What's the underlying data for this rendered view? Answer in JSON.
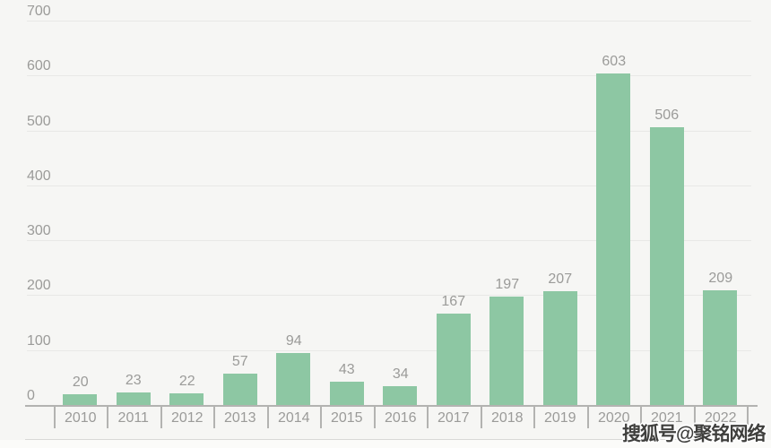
{
  "chart_data": {
    "type": "bar",
    "title": "",
    "xlabel": "",
    "ylabel": "",
    "categories": [
      "2010",
      "2011",
      "2012",
      "2013",
      "2014",
      "2015",
      "2016",
      "2017",
      "2018",
      "2019",
      "2020",
      "2021",
      "2022"
    ],
    "values": [
      20,
      23,
      22,
      57,
      94,
      43,
      34,
      167,
      197,
      207,
      603,
      506,
      209
    ],
    "ylim": [
      0,
      700
    ],
    "yticks": [
      0,
      100,
      200,
      300,
      400,
      500,
      600,
      700
    ],
    "grid": true,
    "legend": "none",
    "bar_color": "#8dc7a3",
    "label_color": "#9b9b99",
    "axis_color": "#b3b3b1",
    "gridline_color": "#e8e8e6",
    "background_color": "#f6f6f4"
  },
  "watermark": {
    "text": "搜狐号@聚铭网络"
  }
}
